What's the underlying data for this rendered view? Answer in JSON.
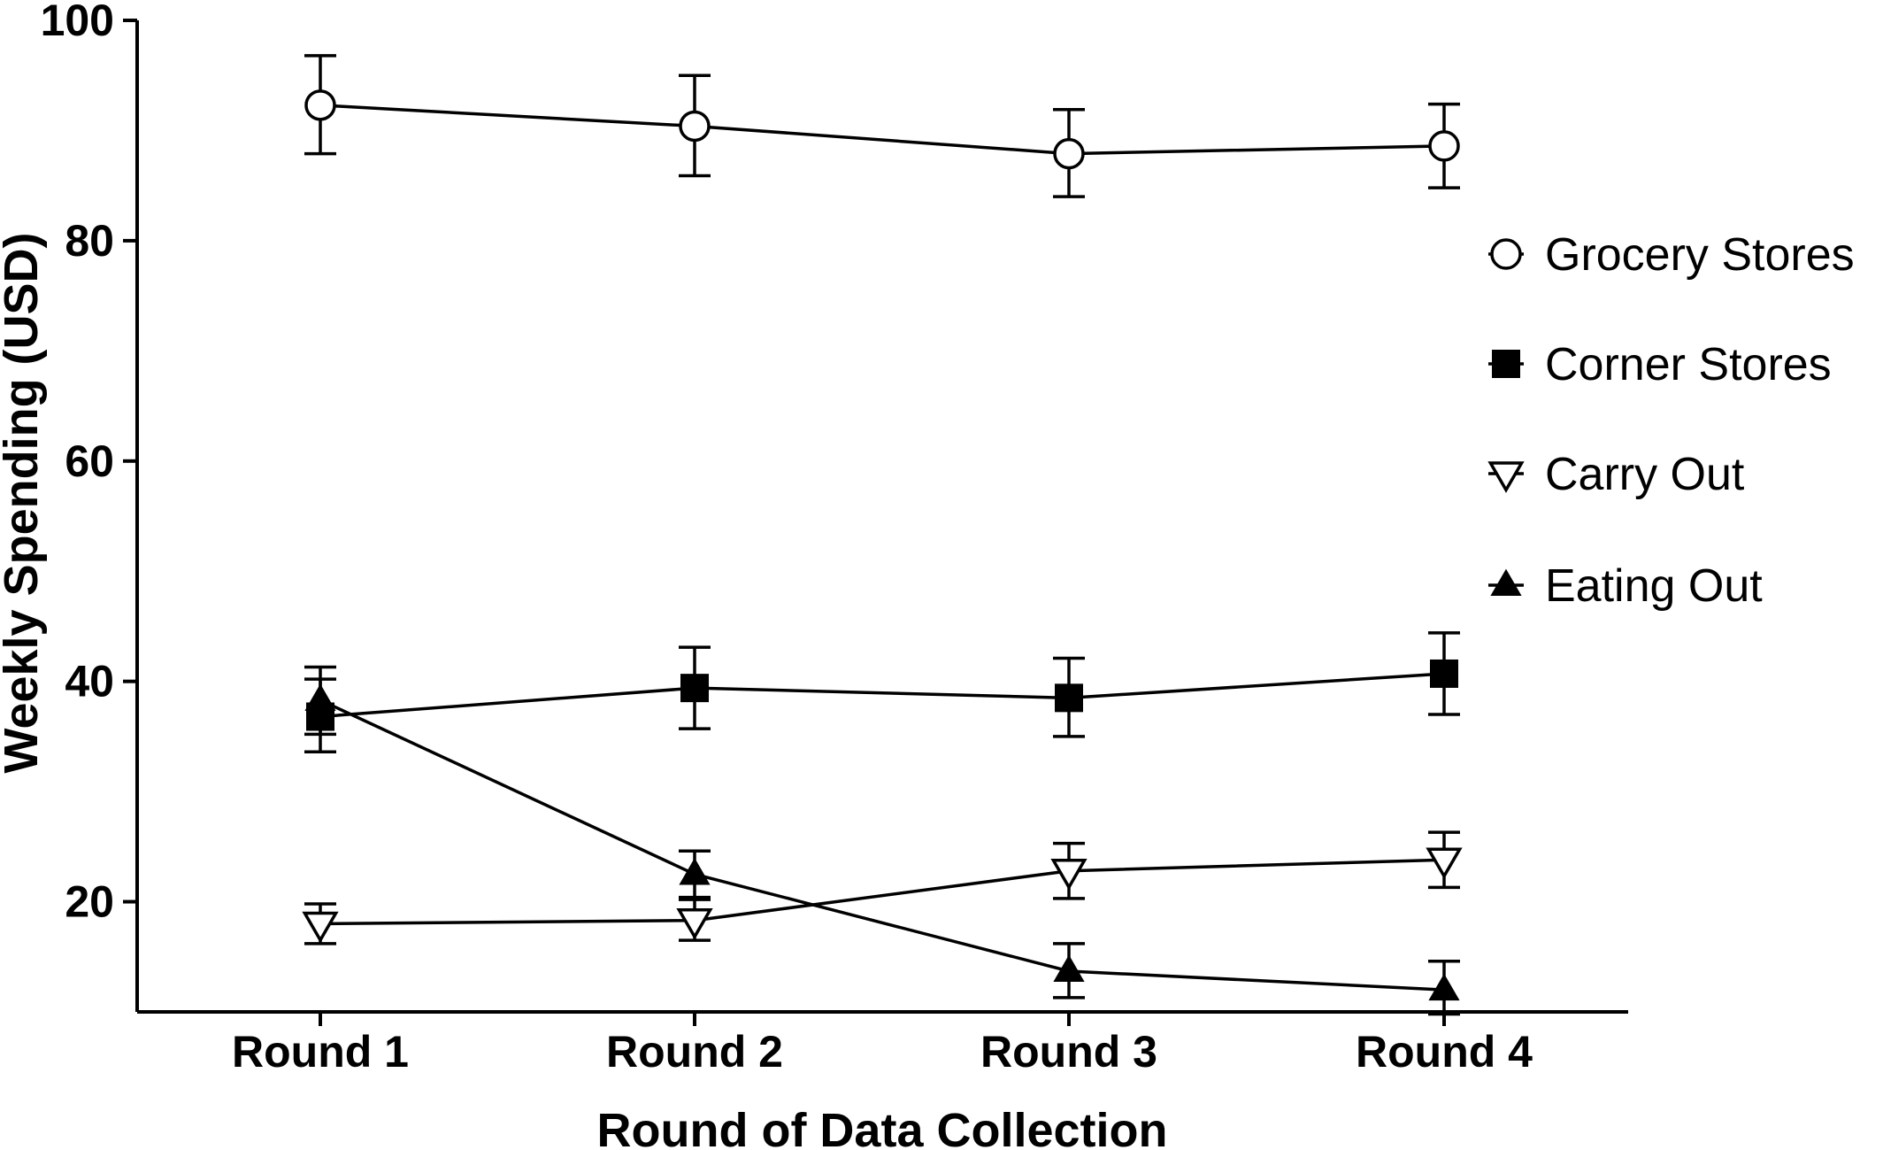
{
  "chart_data": {
    "type": "line",
    "title": "",
    "xlabel": "Round of Data Collection",
    "ylabel": "Weekly Spending  (USD)",
    "categories": [
      "Round 1",
      "Round 2",
      "Round 3",
      "Round 4"
    ],
    "ylim": [
      10,
      100
    ],
    "yticks": [
      20,
      40,
      60,
      80,
      100
    ],
    "grid": false,
    "legend_position": "right",
    "series": [
      {
        "name": "Grocery Stores",
        "marker": "circle-open",
        "values": [
          92.3,
          90.4,
          87.9,
          88.6
        ],
        "error_low": [
          87.9,
          85.9,
          84.0,
          84.8
        ],
        "error_high": [
          96.8,
          95.0,
          91.9,
          92.4
        ]
      },
      {
        "name": "Corner Stores",
        "marker": "square-filled",
        "values": [
          36.8,
          39.4,
          38.5,
          40.7
        ],
        "error_low": [
          33.6,
          35.7,
          35.0,
          37.0
        ],
        "error_high": [
          40.2,
          43.1,
          42.1,
          44.4
        ]
      },
      {
        "name": "Carry Out",
        "marker": "triangle-down-open",
        "values": [
          18.0,
          18.3,
          22.8,
          23.8
        ],
        "error_low": [
          16.2,
          16.5,
          20.3,
          21.3
        ],
        "error_high": [
          19.8,
          20.2,
          25.3,
          26.3
        ]
      },
      {
        "name": "Eating Out",
        "marker": "triangle-up-filled",
        "values": [
          38.3,
          22.5,
          13.7,
          12.0
        ],
        "error_low": [
          35.2,
          20.4,
          11.3,
          9.8
        ],
        "error_high": [
          41.3,
          24.6,
          16.2,
          14.6
        ]
      }
    ]
  }
}
